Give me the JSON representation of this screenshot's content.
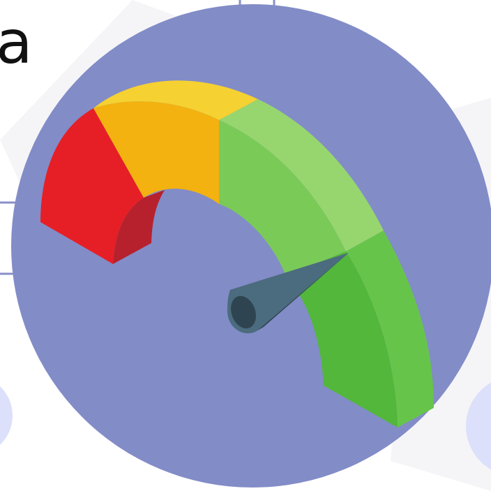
{
  "visible_text": {
    "partial_heading": "a"
  },
  "illustration": {
    "subject": "speedometer-gauge",
    "colors": {
      "disc": "#828CC7",
      "red": "#E61F26",
      "red_shade": "#B6212D",
      "orange": "#F3B20F",
      "yellow": "#F5D132",
      "green_light": "#97D66E",
      "green_mid": "#7ACA58",
      "green": "#67C44B",
      "green_dark": "#52B73B",
      "needle": "#4B6B7E",
      "needle_dark": "#2F4451",
      "grid_line": "#8890C8",
      "background_shape": "#F5F5F7",
      "side_circle": "#DCE0FA"
    }
  }
}
